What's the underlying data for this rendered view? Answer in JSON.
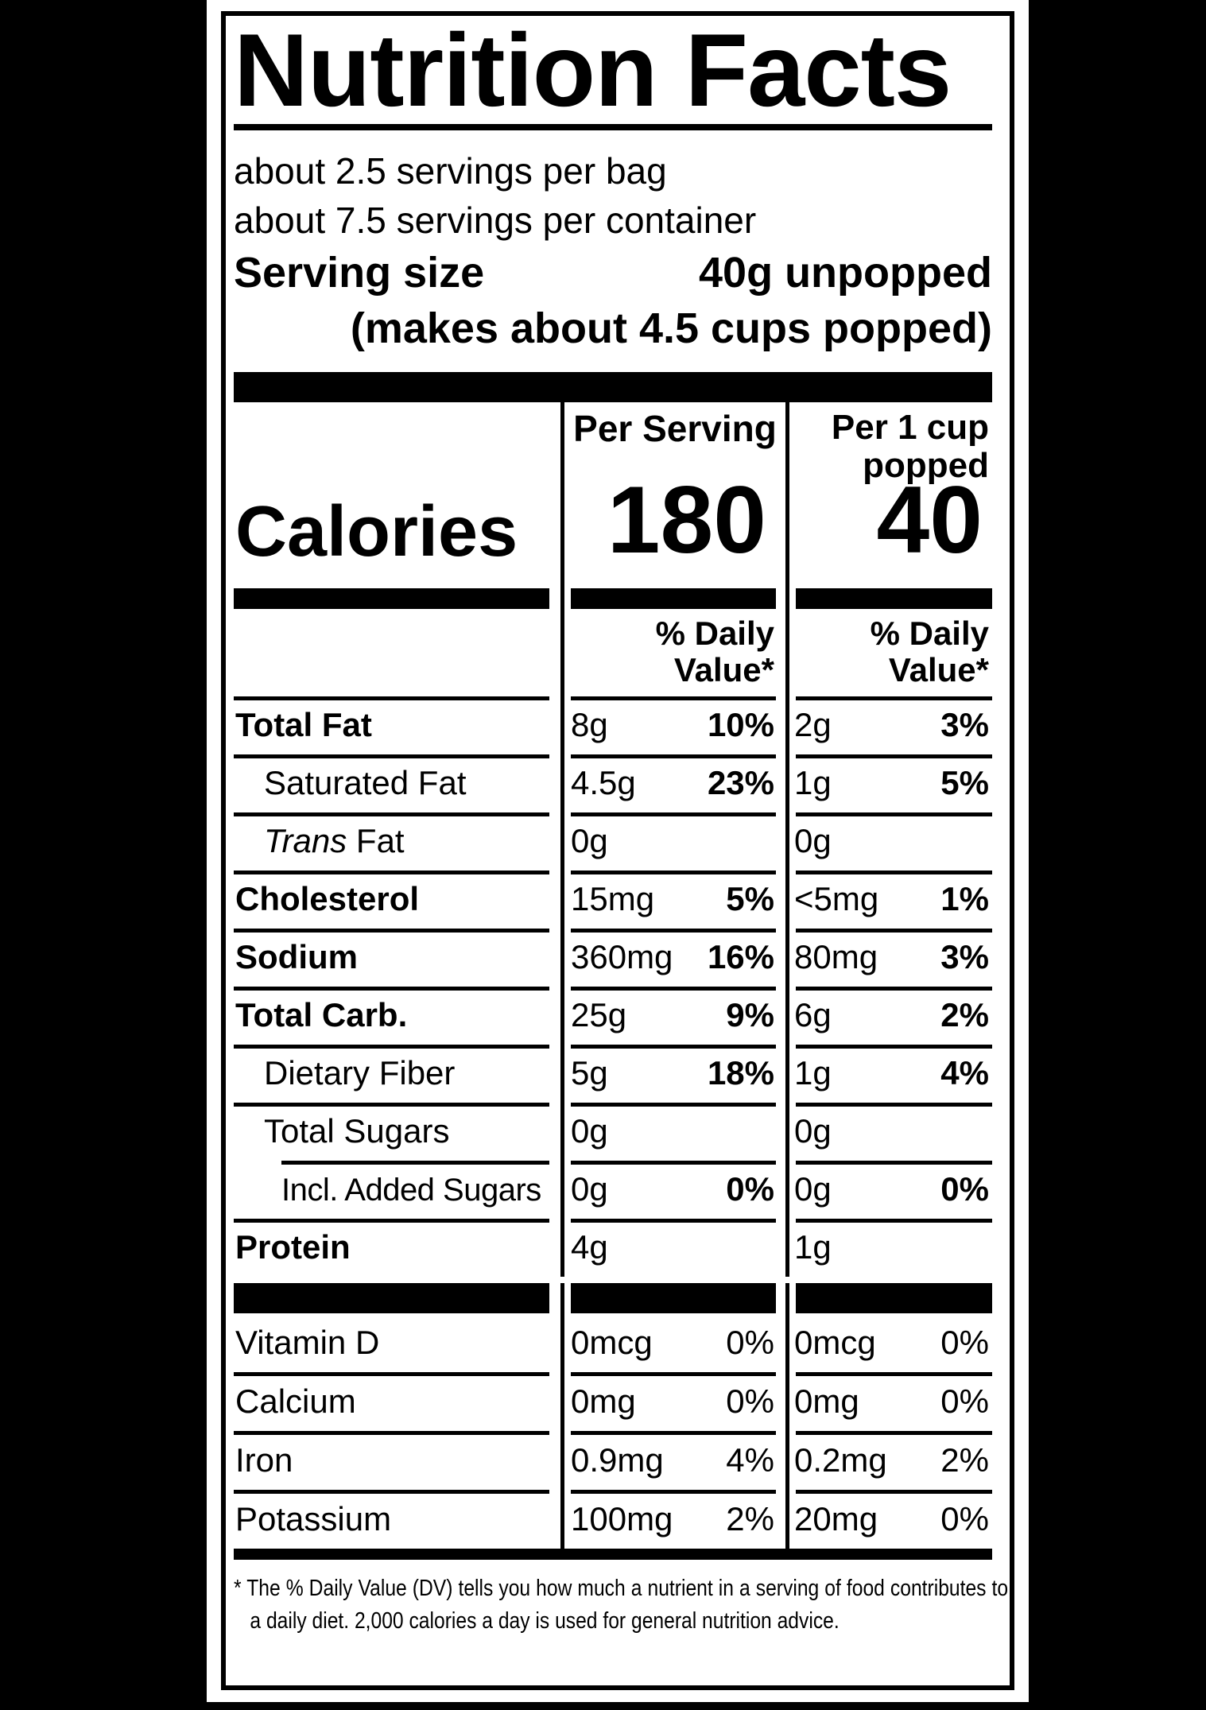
{
  "label": {
    "title": "Nutrition Facts",
    "servings_per_bag": "about 2.5 servings per bag",
    "servings_per_container": "about 7.5 servings per container",
    "serving_size_label": "Serving size",
    "serving_size_value": "40g unpopped",
    "serving_size_note": "(makes about 4.5 cups popped)",
    "col_per_serving": "Per Serving",
    "col_per_cup_line1": "Per 1 cup",
    "col_per_cup_line2": "popped",
    "calories_label": "Calories",
    "calories_per_serving": "180",
    "calories_per_cup": "40",
    "dv_header_line1": "% Daily",
    "dv_header_line2": "Value*",
    "rows": [
      {
        "name": "Total Fat",
        "amount_serving": "8g",
        "dv_serving": "10%",
        "amount_cup": "2g",
        "dv_cup": "3%"
      },
      {
        "name": "Saturated Fat",
        "amount_serving": "4.5g",
        "dv_serving": "23%",
        "amount_cup": "1g",
        "dv_cup": "5%"
      },
      {
        "name_italic": "Trans",
        "name_rest": " Fat",
        "amount_serving": "0g",
        "dv_serving": "",
        "amount_cup": "0g",
        "dv_cup": ""
      },
      {
        "name": "Cholesterol",
        "amount_serving": "15mg",
        "dv_serving": "5%",
        "amount_cup": "<5mg",
        "dv_cup": "1%"
      },
      {
        "name": "Sodium",
        "amount_serving": "360mg",
        "dv_serving": "16%",
        "amount_cup": "80mg",
        "dv_cup": "3%"
      },
      {
        "name": "Total Carb.",
        "amount_serving": "25g",
        "dv_serving": "9%",
        "amount_cup": "6g",
        "dv_cup": "2%"
      },
      {
        "name": "Dietary Fiber",
        "amount_serving": "5g",
        "dv_serving": "18%",
        "amount_cup": "1g",
        "dv_cup": "4%"
      },
      {
        "name": "Total Sugars",
        "amount_serving": "0g",
        "dv_serving": "",
        "amount_cup": "0g",
        "dv_cup": ""
      },
      {
        "name": "Incl. Added Sugars",
        "amount_serving": "0g",
        "dv_serving": "0%",
        "amount_cup": "0g",
        "dv_cup": "0%"
      },
      {
        "name": "Protein",
        "amount_serving": "4g",
        "dv_serving": "",
        "amount_cup": "1g",
        "dv_cup": ""
      },
      {
        "name": "Vitamin D",
        "amount_serving": "0mcg",
        "dv_serving": "0%",
        "amount_cup": "0mcg",
        "dv_cup": "0%"
      },
      {
        "name": "Calcium",
        "amount_serving": "0mg",
        "dv_serving": "0%",
        "amount_cup": "0mg",
        "dv_cup": "0%"
      },
      {
        "name": "Iron",
        "amount_serving": "0.9mg",
        "dv_serving": "4%",
        "amount_cup": "0.2mg",
        "dv_cup": "2%"
      },
      {
        "name": "Potassium",
        "amount_serving": "100mg",
        "dv_serving": "2%",
        "amount_cup": "20mg",
        "dv_cup": "0%"
      }
    ],
    "footnote": "* The % Daily Value (DV) tells you how much a nutrient in a serving of food contributes to a daily diet. 2,000 calories a day is used for general nutrition advice."
  },
  "colors": {
    "ink": "#000000",
    "paper": "#ffffff"
  }
}
